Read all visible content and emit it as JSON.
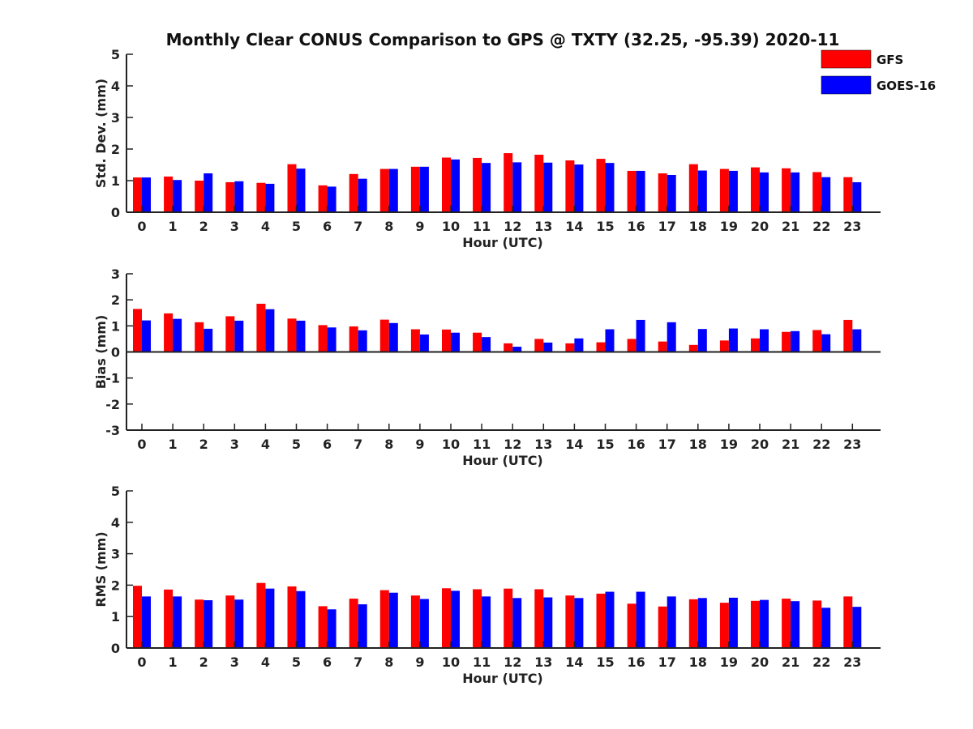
{
  "figure": {
    "title": "Monthly Clear CONUS Comparison to GPS @ TXTY (32.25, -95.39) 2020-11"
  },
  "legend": {
    "position": "top-right",
    "entries": [
      {
        "name": "GFS",
        "color": "#ff0000"
      },
      {
        "name": "GOES-16",
        "color": "#0000ff"
      }
    ]
  },
  "chart_data": [
    {
      "type": "bar",
      "xlabel": "Hour (UTC)",
      "ylabel": "Std. Dev. (mm)",
      "ylim": [
        0,
        5
      ],
      "yticks": [
        "0",
        "1",
        "2",
        "3",
        "4",
        "5"
      ],
      "categories": [
        "0",
        "1",
        "2",
        "3",
        "4",
        "5",
        "6",
        "7",
        "8",
        "9",
        "10",
        "11",
        "12",
        "13",
        "14",
        "15",
        "16",
        "17",
        "18",
        "19",
        "20",
        "21",
        "22",
        "23"
      ],
      "series": [
        {
          "name": "GFS",
          "color": "#ff0000",
          "values": [
            1.1,
            1.13,
            1.0,
            0.95,
            0.93,
            1.52,
            0.85,
            1.21,
            1.37,
            1.44,
            1.73,
            1.72,
            1.87,
            1.82,
            1.64,
            1.69,
            1.31,
            1.23,
            1.52,
            1.37,
            1.42,
            1.39,
            1.27,
            1.11
          ]
        },
        {
          "name": "GOES-16",
          "color": "#0000ff",
          "values": [
            1.1,
            1.02,
            1.23,
            0.98,
            0.9,
            1.38,
            0.81,
            1.06,
            1.37,
            1.44,
            1.67,
            1.56,
            1.58,
            1.57,
            1.51,
            1.56,
            1.31,
            1.18,
            1.32,
            1.31,
            1.26,
            1.26,
            1.11,
            0.95
          ]
        }
      ]
    },
    {
      "type": "bar",
      "xlabel": "Hour (UTC)",
      "ylabel": "Bias (mm)",
      "ylim": [
        -3,
        3
      ],
      "yticks": [
        "-3",
        "-2",
        "-1",
        "0",
        "1",
        "2",
        "3"
      ],
      "categories": [
        "0",
        "1",
        "2",
        "3",
        "4",
        "5",
        "6",
        "7",
        "8",
        "9",
        "10",
        "11",
        "12",
        "13",
        "14",
        "15",
        "16",
        "17",
        "18",
        "19",
        "20",
        "21",
        "22",
        "23"
      ],
      "series": [
        {
          "name": "GFS",
          "color": "#ff0000",
          "values": [
            1.65,
            1.48,
            1.14,
            1.37,
            1.85,
            1.28,
            1.03,
            0.98,
            1.24,
            0.87,
            0.86,
            0.74,
            0.33,
            0.5,
            0.33,
            0.37,
            0.5,
            0.4,
            0.27,
            0.44,
            0.52,
            0.77,
            0.84,
            1.23
          ]
        },
        {
          "name": "GOES-16",
          "color": "#0000ff",
          "values": [
            1.21,
            1.27,
            0.89,
            1.2,
            1.64,
            1.2,
            0.94,
            0.83,
            1.11,
            0.67,
            0.74,
            0.57,
            0.2,
            0.36,
            0.52,
            0.87,
            1.23,
            1.14,
            0.88,
            0.9,
            0.87,
            0.8,
            0.68,
            0.87
          ]
        }
      ]
    },
    {
      "type": "bar",
      "xlabel": "Hour (UTC)",
      "ylabel": "RMS (mm)",
      "ylim": [
        0,
        5
      ],
      "yticks": [
        "0",
        "1",
        "2",
        "3",
        "4",
        "5"
      ],
      "categories": [
        "0",
        "1",
        "2",
        "3",
        "4",
        "5",
        "6",
        "7",
        "8",
        "9",
        "10",
        "11",
        "12",
        "13",
        "14",
        "15",
        "16",
        "17",
        "18",
        "19",
        "20",
        "21",
        "22",
        "23"
      ],
      "series": [
        {
          "name": "GFS",
          "color": "#ff0000",
          "values": [
            1.98,
            1.86,
            1.54,
            1.67,
            2.07,
            1.96,
            1.33,
            1.57,
            1.84,
            1.67,
            1.9,
            1.87,
            1.89,
            1.87,
            1.67,
            1.73,
            1.41,
            1.32,
            1.55,
            1.44,
            1.5,
            1.57,
            1.51,
            1.64
          ]
        },
        {
          "name": "GOES-16",
          "color": "#0000ff",
          "values": [
            1.64,
            1.64,
            1.52,
            1.54,
            1.89,
            1.81,
            1.23,
            1.39,
            1.76,
            1.56,
            1.82,
            1.64,
            1.59,
            1.61,
            1.59,
            1.79,
            1.79,
            1.64,
            1.59,
            1.6,
            1.53,
            1.49,
            1.28,
            1.31
          ]
        }
      ]
    }
  ]
}
